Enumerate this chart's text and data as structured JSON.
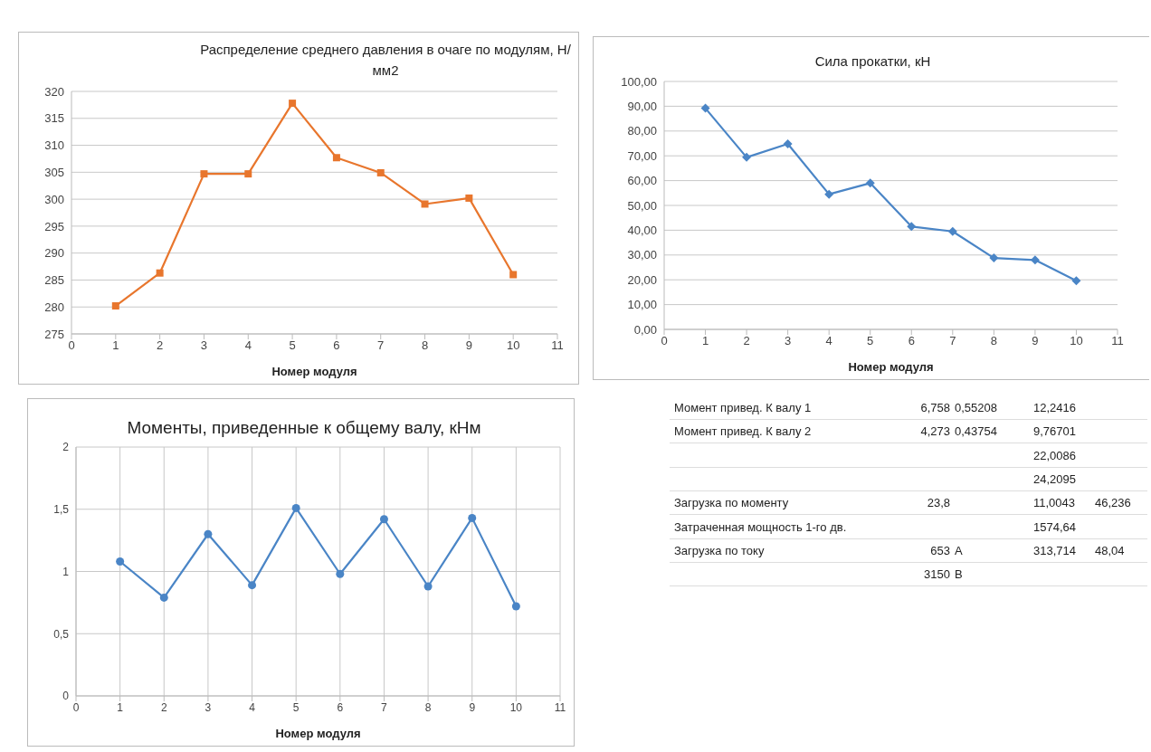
{
  "chart_data": [
    {
      "type": "line",
      "title": "Распределение среднего давления в очаге по модулям, Н/мм2",
      "xlabel": "Номер модуля",
      "x": [
        1,
        2,
        3,
        4,
        5,
        6,
        7,
        8,
        9,
        10
      ],
      "series": [
        {
          "color": "#e8762d",
          "values": [
            280.2,
            286.3,
            304.7,
            304.7,
            317.8,
            307.7,
            304.9,
            299.1,
            300.2,
            286.0
          ]
        }
      ],
      "xlim": [
        0,
        11
      ],
      "xticks": [
        0,
        1,
        2,
        3,
        4,
        5,
        6,
        7,
        8,
        9,
        10,
        11
      ],
      "ylim": [
        275,
        320
      ],
      "yticks": [
        275,
        280,
        285,
        290,
        295,
        300,
        305,
        310,
        315,
        320
      ],
      "grid": "y",
      "marker": "square",
      "legend": false
    },
    {
      "type": "line",
      "title": "Сила прокатки, кН",
      "xlabel": "Номер модуля",
      "x": [
        1,
        2,
        3,
        4,
        5,
        6,
        7,
        8,
        9,
        10
      ],
      "series": [
        {
          "color": "#4a85c6",
          "values": [
            89.2,
            69.4,
            74.8,
            54.5,
            59.0,
            41.5,
            39.5,
            28.8,
            28.0,
            19.6
          ]
        }
      ],
      "xlim": [
        0,
        11
      ],
      "xticks": [
        0,
        1,
        2,
        3,
        4,
        5,
        6,
        7,
        8,
        9,
        10,
        11
      ],
      "ylim": [
        0,
        100
      ],
      "yticks": [
        {
          "value": 0,
          "label": "0,00"
        },
        {
          "value": 10,
          "label": "10,00"
        },
        {
          "value": 20,
          "label": "20,00"
        },
        {
          "value": 30,
          "label": "30,00"
        },
        {
          "value": 40,
          "label": "40,00"
        },
        {
          "value": 50,
          "label": "50,00"
        },
        {
          "value": 60,
          "label": "60,00"
        },
        {
          "value": 70,
          "label": "70,00"
        },
        {
          "value": 80,
          "label": "80,00"
        },
        {
          "value": 90,
          "label": "90,00"
        },
        {
          "value": 100,
          "label": "100,00"
        }
      ],
      "grid": "y",
      "marker": "diamond",
      "legend": false
    },
    {
      "type": "line",
      "title": "Моменты, приведенные к общему валу, кНм",
      "xlabel": "Номер модуля",
      "x": [
        1,
        2,
        3,
        4,
        5,
        6,
        7,
        8,
        9,
        10
      ],
      "series": [
        {
          "color": "#4a85c6",
          "values": [
            1.08,
            0.79,
            1.3,
            0.89,
            1.51,
            0.98,
            1.42,
            0.88,
            1.43,
            0.72
          ]
        }
      ],
      "xlim": [
        0,
        11
      ],
      "xticks": [
        0,
        1,
        2,
        3,
        4,
        5,
        6,
        7,
        8,
        9,
        10,
        11
      ],
      "ylim": [
        0,
        2
      ],
      "yticks": [
        0,
        {
          "value": 0.5,
          "label": "0,5"
        },
        1,
        {
          "value": 1.5,
          "label": "1,5"
        },
        2
      ],
      "grid": true,
      "marker": "circle",
      "legend": false
    },
    {
      "type": "other",
      "annotations": [
        "Момент привед. К валу 1\t6,758\t0,55208\t12,2416",
        "Момент привед. К валу 2\t4,273\t0,43754\t9,76701",
        "\t\t\t22,0086",
        "\t\t\t24,2095",
        "Загрузка по моменту\t23,8\t\t11,0043\t46,236",
        "Затраченная мощность 1-го дв.\t\t\t1574,64",
        "Загрузка по току\t653\tА\t313,714\t48,04",
        "\t3150\tВ"
      ]
    }
  ]
}
